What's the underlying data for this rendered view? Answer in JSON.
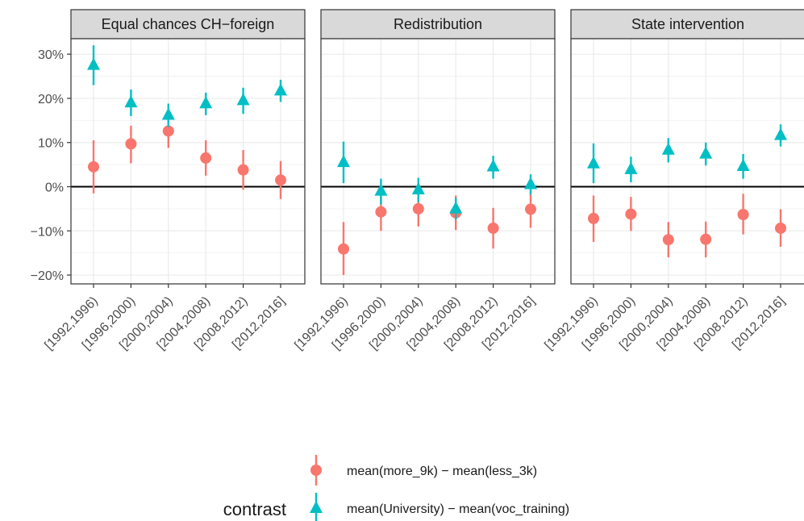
{
  "chart_data": {
    "type": "scatter",
    "subtype": "pointrange",
    "y_tick_labels": [
      "30%",
      "20%",
      "10%",
      "0%",
      "−10%",
      "−20%"
    ],
    "y_ticks": [
      30,
      20,
      10,
      0,
      -10,
      -20
    ],
    "ylim": [
      -22,
      33.5
    ],
    "categories": [
      "[1992,1996)",
      "[1996,2000)",
      "[2000,2004)",
      "[2004,2008)",
      "[2008,2012)",
      "[2012,2016]"
    ],
    "grid": true,
    "zero_line": true,
    "legend": {
      "title": "contrast",
      "position": "bottom"
    },
    "series": [
      {
        "name": "mean(more_9k) − mean(less_3k)",
        "color": "#F8766D",
        "shape": "circle"
      },
      {
        "name": "mean(University) − mean(voc_training)",
        "color": "#00BFC4",
        "shape": "triangle"
      }
    ],
    "panels": [
      {
        "title": "Equal chances CH−foreign",
        "series": [
          {
            "values": [
              4.5,
              9.7,
              12.6,
              6.5,
              3.8,
              1.5
            ],
            "lower": [
              -1.5,
              5.3,
              8.8,
              2.5,
              -0.7,
              -2.8
            ],
            "upper": [
              10.5,
              13.8,
              16.5,
              10.5,
              8.3,
              5.8
            ]
          },
          {
            "values": [
              27.5,
              19.0,
              16.2,
              18.8,
              19.5,
              21.7
            ],
            "lower": [
              23.0,
              16.0,
              13.5,
              16.2,
              16.5,
              19.2
            ],
            "upper": [
              32.0,
              22.0,
              18.8,
              21.3,
              22.4,
              24.2
            ]
          }
        ]
      },
      {
        "title": "Redistribution",
        "series": [
          {
            "values": [
              -14.1,
              -5.7,
              -5.0,
              -5.9,
              -9.4,
              -5.1
            ],
            "lower": [
              -20.0,
              -10.0,
              -9.0,
              -9.8,
              -14.0,
              -9.3
            ],
            "upper": [
              -8.0,
              -1.5,
              -1.0,
              -2.0,
              -4.8,
              -1.0
            ]
          },
          {
            "values": [
              5.5,
              -1.0,
              -0.7,
              -5.0,
              4.5,
              0.5
            ],
            "lower": [
              0.8,
              -4.0,
              -3.5,
              -7.5,
              1.8,
              -1.8
            ],
            "upper": [
              10.2,
              1.8,
              2.0,
              -2.5,
              7.0,
              2.8
            ]
          }
        ]
      },
      {
        "title": "State intervention",
        "series": [
          {
            "values": [
              -7.2,
              -6.2,
              -12.0,
              -11.9,
              -6.3,
              -9.4
            ],
            "lower": [
              -12.5,
              -10.0,
              -16.0,
              -16.0,
              -10.8,
              -13.6
            ],
            "upper": [
              -2.0,
              -2.3,
              -8.0,
              -7.9,
              -1.6,
              -5.1
            ]
          },
          {
            "values": [
              5.2,
              3.9,
              8.3,
              7.4,
              4.6,
              11.6
            ],
            "lower": [
              0.8,
              1.0,
              5.5,
              4.8,
              1.8,
              9.1
            ],
            "upper": [
              9.8,
              6.8,
              11.0,
              10.0,
              7.4,
              14.1
            ]
          }
        ]
      }
    ]
  }
}
